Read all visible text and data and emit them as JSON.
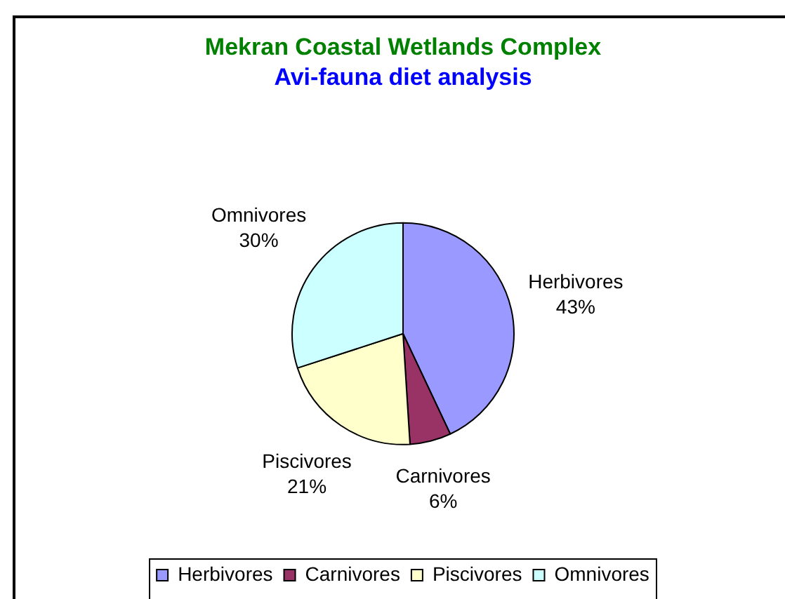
{
  "chart_data": {
    "type": "pie",
    "title": "Mekran Coastal Wetlands Complex",
    "subtitle": "Avi-fauna diet analysis",
    "categories": [
      "Herbivores",
      "Carnivores",
      "Piscivores",
      "Omnivores"
    ],
    "values": [
      43,
      6,
      21,
      30
    ],
    "value_labels": [
      "43%",
      "6%",
      "21%",
      "30%"
    ],
    "colors": [
      "#9999ff",
      "#993366",
      "#ffffcc",
      "#ccffff"
    ],
    "legend": "bottom"
  }
}
